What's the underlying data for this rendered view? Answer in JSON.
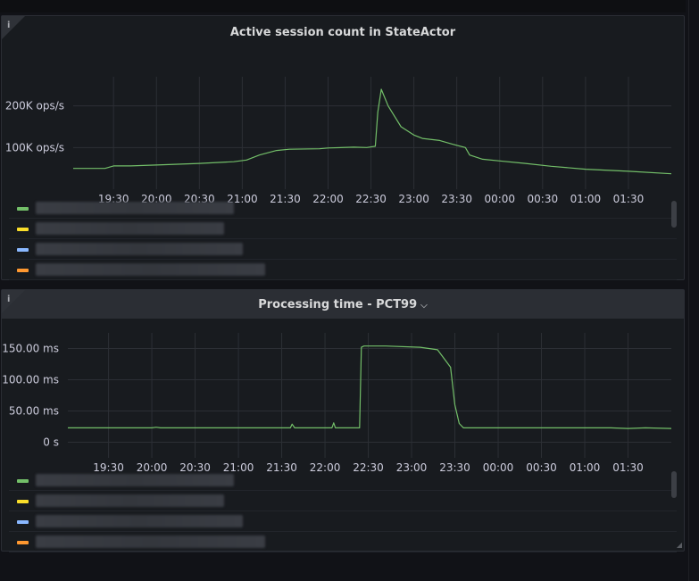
{
  "panels": [
    {
      "title": "Active session count in StateActor",
      "info_icon": "info-icon",
      "has_dropdown": false,
      "legend": [
        {
          "color": "#73bf69"
        },
        {
          "color": "#fade2a"
        },
        {
          "color": "#8ab8ff"
        },
        {
          "color": "#ff9830"
        }
      ]
    },
    {
      "title": "Processing time - PCT99",
      "chevron": "⌵",
      "info_icon": "info-icon",
      "has_dropdown": true,
      "legend": [
        {
          "color": "#73bf69"
        },
        {
          "color": "#fade2a"
        },
        {
          "color": "#8ab8ff"
        },
        {
          "color": "#ff9830"
        }
      ]
    }
  ],
  "chart_data": [
    {
      "type": "line",
      "title": "Active session count in StateActor",
      "x_ticks": [
        "19:30",
        "20:00",
        "20:30",
        "21:00",
        "21:30",
        "22:00",
        "22:30",
        "23:00",
        "23:30",
        "00:00",
        "00:30",
        "01:00",
        "01:30"
      ],
      "y_ticks": [
        "100K ops/s",
        "200K ops/s"
      ],
      "y_tick_values": [
        100000,
        200000
      ],
      "ylim": [
        0,
        270000
      ],
      "x_range_hours": [
        19.03,
        26.0
      ],
      "grid": true,
      "series": [
        {
          "color": "#73bf69",
          "x": [
            19.03,
            19.4,
            19.5,
            19.7,
            20.0,
            20.5,
            20.9,
            21.05,
            21.2,
            21.4,
            21.55,
            21.9,
            22.0,
            22.3,
            22.45,
            22.55,
            22.58,
            22.62,
            22.7,
            22.85,
            23.0,
            23.1,
            23.3,
            23.45,
            23.6,
            23.65,
            23.8,
            24.0,
            24.3,
            24.6,
            25.0,
            25.5,
            26.0
          ],
          "y": [
            50000,
            50000,
            56000,
            56000,
            58000,
            62000,
            66000,
            70000,
            82000,
            93000,
            96000,
            97000,
            99000,
            101000,
            100000,
            103000,
            185000,
            240000,
            200000,
            150000,
            130000,
            122000,
            117000,
            108000,
            100000,
            82000,
            72000,
            68000,
            62000,
            55000,
            48000,
            43000,
            37000
          ]
        }
      ]
    },
    {
      "type": "line",
      "title": "Processing time - PCT99",
      "x_ticks": [
        "19:30",
        "20:00",
        "20:30",
        "21:00",
        "21:30",
        "22:00",
        "22:30",
        "23:00",
        "23:30",
        "00:00",
        "00:30",
        "01:00",
        "01:30"
      ],
      "y_ticks": [
        "0 s",
        "50.00 ms",
        "100.00 ms",
        "150.00 ms"
      ],
      "y_tick_values": [
        0,
        50,
        100,
        150
      ],
      "ylim": [
        -25,
        175
      ],
      "x_range_hours": [
        19.03,
        26.0
      ],
      "grid": true,
      "series": [
        {
          "color": "#73bf69",
          "x": [
            19.03,
            20.0,
            20.05,
            20.1,
            21.0,
            21.6,
            21.62,
            21.65,
            22.0,
            22.08,
            22.1,
            22.12,
            22.4,
            22.42,
            22.45,
            22.7,
            23.1,
            23.3,
            23.45,
            23.5,
            23.55,
            23.6,
            23.7,
            24.0,
            25.0,
            25.3,
            25.5,
            25.7,
            26.0
          ],
          "y": [
            23,
            23,
            24,
            23,
            23,
            23,
            29,
            23,
            23,
            23,
            31,
            23,
            23,
            152,
            154,
            154,
            152,
            148,
            120,
            60,
            30,
            23,
            23,
            23,
            23,
            23,
            22,
            23,
            22
          ]
        }
      ]
    }
  ]
}
